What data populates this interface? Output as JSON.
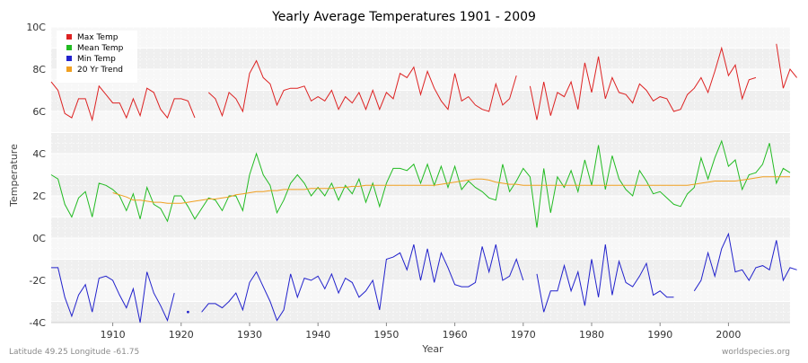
{
  "chart_data": {
    "type": "line",
    "title": "Yearly Average Temperatures 1901 - 2009",
    "xlabel": "Year",
    "ylabel": "Temperature",
    "xlim": [
      1901,
      2009
    ],
    "ylim": [
      -4,
      10
    ],
    "x_ticks": [
      1910,
      1920,
      1930,
      1940,
      1950,
      1960,
      1970,
      1980,
      1990,
      2000
    ],
    "y_ticks": [
      {
        "value": -4,
        "label": "-4C"
      },
      {
        "value": -2,
        "label": "-2C"
      },
      {
        "value": 0,
        "label": "0C"
      },
      {
        "value": 2,
        "label": "2C"
      },
      {
        "value": 4,
        "label": "4C"
      },
      {
        "value": 6,
        "label": "6C"
      },
      {
        "value": 8,
        "label": "8C"
      },
      {
        "value": 10,
        "label": "10C"
      }
    ],
    "grid": true,
    "legend_position": "top-left",
    "colors": {
      "max": "#dd2222",
      "mean": "#22bb22",
      "min": "#2222cc",
      "trend": "#f0a020",
      "band_light": "#f7f7f7",
      "band_dark": "#efefef"
    },
    "series": [
      {
        "name": "Max Temp",
        "color": "#dd2222",
        "start_year": 1901,
        "values": [
          7.4,
          7.0,
          5.9,
          5.7,
          6.6,
          6.6,
          5.6,
          7.2,
          6.8,
          6.4,
          6.4,
          5.7,
          6.6,
          5.8,
          7.1,
          6.9,
          6.1,
          5.7,
          6.6,
          6.6,
          6.5,
          5.7,
          null,
          6.9,
          6.6,
          5.8,
          6.9,
          6.6,
          6.0,
          7.8,
          8.4,
          7.6,
          7.3,
          6.3,
          7.0,
          7.1,
          7.1,
          7.2,
          6.5,
          6.7,
          6.5,
          7.0,
          6.1,
          6.7,
          6.4,
          6.9,
          6.1,
          7.0,
          6.1,
          6.9,
          6.6,
          7.8,
          7.6,
          8.1,
          6.8,
          7.9,
          7.1,
          6.5,
          6.1,
          7.8,
          6.5,
          6.7,
          6.3,
          6.1,
          6.0,
          7.3,
          6.3,
          6.6,
          7.7,
          null,
          7.2,
          5.6,
          7.4,
          5.8,
          6.9,
          6.7,
          7.4,
          6.1,
          8.3,
          6.9,
          8.6,
          6.6,
          7.6,
          6.9,
          6.8,
          6.4,
          7.3,
          7.0,
          6.5,
          6.7,
          6.6,
          6.0,
          6.1,
          6.8,
          7.1,
          7.6,
          6.9,
          7.9,
          9.0,
          7.7,
          8.2,
          6.6,
          7.5,
          7.6,
          null,
          null,
          9.2,
          7.1,
          8.0,
          7.6
        ]
      },
      {
        "name": "Mean Temp",
        "color": "#22bb22",
        "start_year": 1901,
        "values": [
          3.0,
          2.8,
          1.6,
          1.0,
          1.9,
          2.2,
          1.0,
          2.6,
          2.5,
          2.3,
          2.0,
          1.3,
          2.1,
          0.9,
          2.4,
          1.6,
          1.4,
          0.8,
          2.0,
          2.0,
          1.5,
          0.9,
          1.4,
          1.9,
          1.8,
          1.3,
          2.0,
          2.0,
          1.3,
          3.0,
          4.0,
          3.0,
          2.5,
          1.2,
          1.8,
          2.6,
          3.0,
          2.6,
          2.0,
          2.4,
          2.0,
          2.6,
          1.8,
          2.5,
          2.1,
          2.8,
          1.7,
          2.6,
          1.5,
          2.6,
          3.3,
          3.3,
          3.2,
          3.5,
          2.6,
          3.5,
          2.5,
          3.4,
          2.4,
          3.4,
          2.3,
          2.7,
          2.4,
          2.2,
          1.9,
          1.8,
          3.5,
          2.2,
          2.7,
          3.3,
          2.9,
          0.5,
          3.3,
          1.2,
          2.9,
          2.4,
          3.2,
          2.2,
          3.7,
          2.5,
          4.4,
          2.3,
          3.9,
          2.8,
          2.3,
          2.0,
          3.2,
          2.7,
          2.1,
          2.2,
          1.9,
          1.6,
          1.5,
          2.1,
          2.4,
          3.8,
          2.8,
          3.8,
          4.6,
          3.4,
          3.7,
          2.3,
          3.0,
          3.1,
          3.5,
          4.5,
          2.6,
          3.3,
          3.1
        ]
      },
      {
        "name": "Min Temp",
        "color": "#2222cc",
        "start_year": 1901,
        "values": [
          -1.4,
          -1.4,
          -2.8,
          -3.7,
          -2.7,
          -2.2,
          -3.5,
          -1.9,
          -1.8,
          -2.0,
          -2.7,
          -3.3,
          -2.4,
          -4.0,
          -1.6,
          -2.6,
          -3.2,
          -3.9,
          -2.6,
          null,
          -3.5,
          null,
          -3.5,
          -3.1,
          -3.1,
          -3.3,
          -3.0,
          -2.6,
          -3.4,
          -2.1,
          -1.6,
          -2.3,
          -3.0,
          -3.9,
          -3.4,
          -1.7,
          -2.8,
          -1.9,
          -2.0,
          -1.8,
          -2.4,
          -1.7,
          -2.6,
          -1.9,
          -2.1,
          -2.8,
          -2.5,
          -2.0,
          -3.4,
          -1.0,
          -0.9,
          -0.7,
          -1.5,
          -0.3,
          -2.0,
          -0.5,
          -2.1,
          -0.7,
          -1.4,
          -2.2,
          -2.3,
          -2.3,
          -2.1,
          -0.4,
          -1.6,
          -0.3,
          -2.0,
          -1.8,
          -1.0,
          -2.0,
          null,
          -1.7,
          -3.5,
          -2.5,
          -2.5,
          -1.3,
          -2.5,
          -1.6,
          -3.2,
          -1.0,
          -2.8,
          -0.3,
          -2.7,
          -1.1,
          -2.1,
          -2.3,
          -1.8,
          -1.2,
          -2.7,
          -2.5,
          -2.8,
          -2.8,
          null,
          null,
          -2.5,
          -2.0,
          -0.7,
          -1.8,
          -0.5,
          0.2,
          -1.6,
          -1.5,
          -2.0,
          -1.4,
          -1.3,
          -1.5,
          -0.1,
          -2.0,
          -1.4,
          -1.5
        ]
      },
      {
        "name": "20 Yr Trend",
        "color": "#f0a020",
        "start_year": 1910,
        "values": [
          2.15,
          2.05,
          1.95,
          1.8,
          1.8,
          1.75,
          1.7,
          1.7,
          1.65,
          1.65,
          1.65,
          1.7,
          1.75,
          1.8,
          1.85,
          1.85,
          1.9,
          1.95,
          2.05,
          2.1,
          2.15,
          2.2,
          2.2,
          2.25,
          2.25,
          2.3,
          2.3,
          2.3,
          2.3,
          2.35,
          2.35,
          2.35,
          2.35,
          2.4,
          2.4,
          2.45,
          2.45,
          2.5,
          2.5,
          2.5,
          2.5,
          2.5,
          2.5,
          2.5,
          2.5,
          2.5,
          2.5,
          2.5,
          2.55,
          2.6,
          2.65,
          2.7,
          2.75,
          2.8,
          2.8,
          2.75,
          2.65,
          2.6,
          2.55,
          2.55,
          2.5,
          2.5,
          2.5,
          2.5,
          2.5,
          2.5,
          2.5,
          2.5,
          2.5,
          2.5,
          2.5,
          2.5,
          2.5,
          2.5,
          2.5,
          2.5,
          2.5,
          2.5,
          2.5,
          2.5,
          2.5,
          2.5,
          2.5,
          2.5,
          2.5,
          2.55,
          2.6,
          2.65,
          2.7,
          2.7,
          2.7,
          2.7,
          2.75,
          2.8,
          2.85,
          2.9,
          2.9,
          2.9,
          2.9,
          2.9
        ]
      }
    ]
  },
  "footer": {
    "location": "Latitude 49.25 Longitude -61.75",
    "credit": "worldspecies.org"
  }
}
